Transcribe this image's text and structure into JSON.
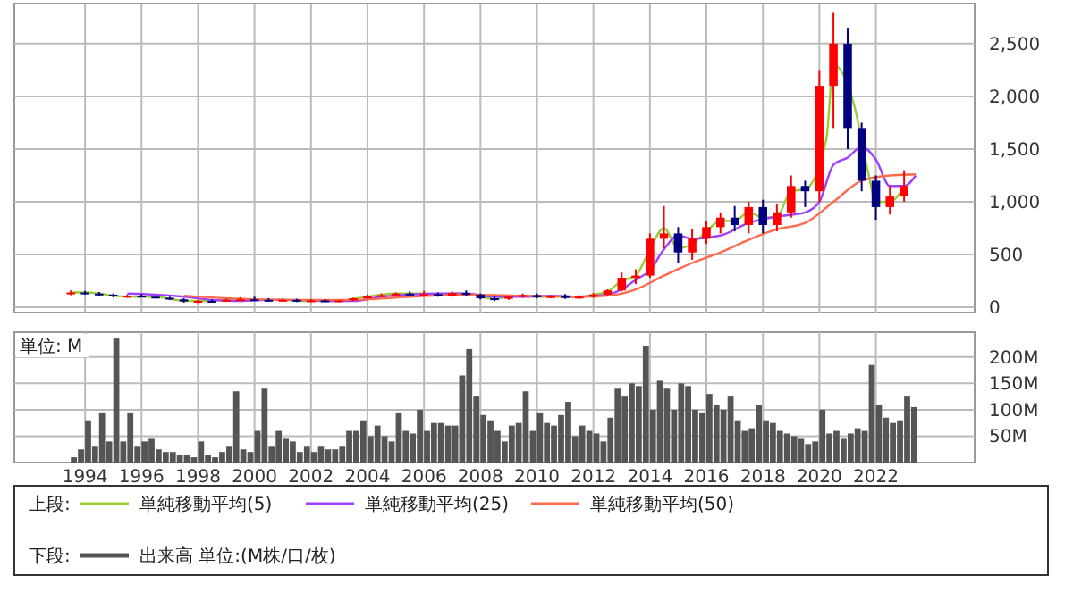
{
  "chart_data": [
    {
      "type": "candlestick",
      "legend_title": "上段:",
      "legend": "bottom",
      "grid": true,
      "tick_labels": "y",
      "xlim": [
        "1991-07",
        "2025-07"
      ],
      "xticks": [
        "1994",
        "1996",
        "1998",
        "2000",
        "2002",
        "2004",
        "2006",
        "2008",
        "2010",
        "2012",
        "2014",
        "2016",
        "2018",
        "2020",
        "2022"
      ],
      "ylim": [
        -50,
        2880
      ],
      "yticks": [
        0,
        500,
        {
          "value": 1000,
          "label": "1,000"
        },
        {
          "value": 1500,
          "label": "1,500"
        },
        {
          "value": 2000,
          "label": "2,000"
        },
        {
          "value": 2500,
          "label": "2,500"
        }
      ],
      "x": [
        "1993-07",
        "1994-01",
        "1994-07",
        "1995-01",
        "1995-07",
        "1996-01",
        "1996-07",
        "1997-01",
        "1997-07",
        "1998-01",
        "1998-07",
        "1999-01",
        "1999-07",
        "2000-01",
        "2000-07",
        "2001-01",
        "2001-07",
        "2002-01",
        "2002-07",
        "2003-01",
        "2003-07",
        "2004-01",
        "2004-07",
        "2005-01",
        "2005-07",
        "2006-01",
        "2006-07",
        "2007-01",
        "2007-07",
        "2008-01",
        "2008-07",
        "2009-01",
        "2009-07",
        "2010-01",
        "2010-07",
        "2011-01",
        "2011-07",
        "2012-01",
        "2012-07",
        "2013-01",
        "2013-07",
        "2014-01",
        "2014-07",
        "2015-01",
        "2015-07",
        "2016-01",
        "2016-07",
        "2017-01",
        "2017-07",
        "2018-01",
        "2018-07",
        "2019-01",
        "2019-07",
        "2020-01",
        "2020-07",
        "2021-01",
        "2021-07",
        "2022-01",
        "2022-07",
        "2023-01"
      ],
      "ohlc": [
        [
          130,
          160,
          115,
          140
        ],
        [
          140,
          155,
          120,
          130
        ],
        [
          130,
          145,
          110,
          120
        ],
        [
          120,
          130,
          95,
          105
        ],
        [
          105,
          120,
          90,
          110
        ],
        [
          110,
          125,
          95,
          100
        ],
        [
          100,
          110,
          85,
          90
        ],
        [
          90,
          100,
          70,
          75
        ],
        [
          75,
          85,
          45,
          55
        ],
        [
          55,
          70,
          40,
          60
        ],
        [
          60,
          75,
          45,
          55
        ],
        [
          55,
          80,
          50,
          70
        ],
        [
          70,
          95,
          60,
          75
        ],
        [
          75,
          100,
          60,
          70
        ],
        [
          70,
          85,
          55,
          65
        ],
        [
          65,
          80,
          55,
          70
        ],
        [
          70,
          80,
          50,
          60
        ],
        [
          60,
          75,
          50,
          65
        ],
        [
          65,
          75,
          50,
          60
        ],
        [
          60,
          70,
          50,
          65
        ],
        [
          65,
          90,
          60,
          85
        ],
        [
          85,
          120,
          80,
          110
        ],
        [
          110,
          130,
          95,
          115
        ],
        [
          115,
          140,
          105,
          130
        ],
        [
          130,
          150,
          110,
          120
        ],
        [
          120,
          155,
          105,
          125
        ],
        [
          125,
          140,
          100,
          110
        ],
        [
          110,
          150,
          100,
          135
        ],
        [
          135,
          160,
          110,
          120
        ],
        [
          120,
          130,
          75,
          85
        ],
        [
          85,
          110,
          60,
          80
        ],
        [
          80,
          110,
          70,
          100
        ],
        [
          100,
          130,
          90,
          115
        ],
        [
          115,
          130,
          85,
          95
        ],
        [
          95,
          115,
          85,
          105
        ],
        [
          105,
          125,
          80,
          95
        ],
        [
          95,
          115,
          80,
          100
        ],
        [
          100,
          135,
          90,
          120
        ],
        [
          120,
          170,
          110,
          160
        ],
        [
          160,
          330,
          150,
          280
        ],
        [
          280,
          360,
          220,
          300
        ],
        [
          300,
          700,
          280,
          650
        ],
        [
          650,
          960,
          560,
          700
        ],
        [
          700,
          760,
          420,
          520
        ],
        [
          520,
          740,
          450,
          650
        ],
        [
          650,
          820,
          600,
          760
        ],
        [
          760,
          900,
          700,
          850
        ],
        [
          850,
          960,
          720,
          780
        ],
        [
          780,
          1000,
          700,
          950
        ],
        [
          950,
          1020,
          700,
          780
        ],
        [
          780,
          980,
          720,
          900
        ],
        [
          900,
          1250,
          850,
          1150
        ],
        [
          1150,
          1200,
          950,
          1100
        ],
        [
          1100,
          2250,
          1000,
          2100
        ],
        [
          2100,
          2800,
          1700,
          2500
        ],
        [
          2500,
          2650,
          1500,
          1700
        ],
        [
          1700,
          1750,
          1100,
          1200
        ],
        [
          1200,
          1250,
          830,
          950
        ],
        [
          950,
          1150,
          880,
          1050
        ],
        [
          1050,
          1300,
          1000,
          1150
        ]
      ],
      "series": [
        {
          "name": "単純移動平均(5)",
          "type": "line",
          "color": "#9acd32",
          "x": [
            "1993-07",
            "1994-01",
            "1994-07",
            "1995-01",
            "1995-07",
            "1996-01",
            "1996-07",
            "1997-01",
            "1997-07",
            "1998-01",
            "1998-07",
            "1999-01",
            "1999-07",
            "2000-01",
            "2000-07",
            "2001-01",
            "2001-07",
            "2002-01",
            "2002-07",
            "2003-01",
            "2003-07",
            "2004-01",
            "2004-07",
            "2005-01",
            "2005-07",
            "2006-01",
            "2006-07",
            "2007-01",
            "2007-07",
            "2008-01",
            "2008-07",
            "2009-01",
            "2009-07",
            "2010-01",
            "2010-07",
            "2011-01",
            "2011-07",
            "2012-01",
            "2012-07",
            "2013-01",
            "2013-07",
            "2014-01",
            "2014-07",
            "2015-01",
            "2015-07",
            "2016-01",
            "2016-07",
            "2017-01",
            "2017-07",
            "2018-01",
            "2018-07",
            "2019-01",
            "2019-07",
            "2020-04",
            "2020-07",
            "2021-04",
            "2021-10",
            "2022-01",
            "2022-07",
            "2023-01"
          ],
          "values": [
            140,
            140,
            130,
            110,
            100,
            100,
            100,
            80,
            60,
            60,
            60,
            70,
            80,
            70,
            70,
            70,
            60,
            60,
            60,
            60,
            80,
            100,
            120,
            130,
            130,
            130,
            120,
            130,
            130,
            100,
            80,
            100,
            110,
            100,
            100,
            100,
            100,
            120,
            150,
            250,
            300,
            550,
            750,
            560,
            600,
            720,
            820,
            820,
            900,
            850,
            860,
            1100,
            1120,
            1600,
            2300,
            1900,
            1250,
            1000,
            1000,
            1150
          ]
        },
        {
          "name": "単純移動平均(25)",
          "type": "line",
          "color": "#a040ff",
          "x": [
            "1995-07",
            "1996-07",
            "1997-07",
            "1998-07",
            "1999-07",
            "2000-07",
            "2001-07",
            "2002-07",
            "2003-07",
            "2004-07",
            "2005-07",
            "2006-07",
            "2007-07",
            "2008-07",
            "2009-07",
            "2010-07",
            "2011-07",
            "2012-07",
            "2013-01",
            "2013-07",
            "2014-01",
            "2014-07",
            "2015-01",
            "2015-07",
            "2016-07",
            "2017-07",
            "2018-07",
            "2019-07",
            "2020-01",
            "2020-07",
            "2021-01",
            "2021-07",
            "2022-01",
            "2022-07",
            "2023-01",
            "2023-06"
          ],
          "values": [
            130,
            120,
            100,
            70,
            60,
            70,
            70,
            60,
            60,
            100,
            120,
            130,
            130,
            100,
            100,
            110,
            100,
            120,
            170,
            260,
            350,
            550,
            680,
            650,
            680,
            800,
            860,
            900,
            1000,
            1350,
            1420,
            1520,
            1400,
            1150,
            1150,
            1250
          ]
        },
        {
          "name": "単純移動平均(50)",
          "type": "line",
          "color": "#ff6a4d",
          "x": [
            "1997-07",
            "1999-07",
            "2001-07",
            "2003-07",
            "2005-07",
            "2007-07",
            "2009-07",
            "2011-07",
            "2012-07",
            "2013-07",
            "2014-07",
            "2015-07",
            "2016-07",
            "2017-07",
            "2018-07",
            "2019-07",
            "2020-07",
            "2021-07",
            "2022-07",
            "2023-06"
          ],
          "values": [
            110,
            80,
            70,
            70,
            100,
            120,
            110,
            100,
            110,
            170,
            300,
            420,
            520,
            640,
            740,
            800,
            1000,
            1200,
            1250,
            1260
          ]
        }
      ]
    },
    {
      "type": "bar",
      "legend_title": "下段:",
      "legend": "bottom",
      "grid": true,
      "ylabel": "単位: M",
      "xlim": [
        "1991-07",
        "2025-07"
      ],
      "xticks": [
        "1994",
        "1996",
        "1998",
        "2000",
        "2002",
        "2004",
        "2006",
        "2008",
        "2010",
        "2012",
        "2014",
        "2016",
        "2018",
        "2020",
        "2022"
      ],
      "ylim": [
        0,
        247
      ],
      "yticks": [
        {
          "value": 50,
          "label": "50M"
        },
        {
          "value": 100,
          "label": "100M"
        },
        {
          "value": 150,
          "label": "150M"
        },
        {
          "value": 200,
          "label": "200M"
        }
      ],
      "x": [
        "1993-07",
        "1993-10",
        "1994-01",
        "1994-04",
        "1994-07",
        "1994-10",
        "1995-01",
        "1995-04",
        "1995-07",
        "1995-10",
        "1996-01",
        "1996-04",
        "1996-07",
        "1996-10",
        "1997-01",
        "1997-04",
        "1997-07",
        "1997-10",
        "1998-01",
        "1998-04",
        "1998-07",
        "1998-10",
        "1999-01",
        "1999-04",
        "1999-07",
        "1999-10",
        "2000-01",
        "2000-04",
        "2000-07",
        "2000-10",
        "2001-01",
        "2001-04",
        "2001-07",
        "2001-10",
        "2002-01",
        "2002-04",
        "2002-07",
        "2002-10",
        "2003-01",
        "2003-04",
        "2003-07",
        "2003-10",
        "2004-01",
        "2004-04",
        "2004-07",
        "2004-10",
        "2005-01",
        "2005-04",
        "2005-07",
        "2005-10",
        "2006-01",
        "2006-04",
        "2006-07",
        "2006-10",
        "2007-01",
        "2007-04",
        "2007-07",
        "2007-10",
        "2008-01",
        "2008-04",
        "2008-07",
        "2008-10",
        "2009-01",
        "2009-04",
        "2009-07",
        "2009-10",
        "2010-01",
        "2010-04",
        "2010-07",
        "2010-10",
        "2011-01",
        "2011-04",
        "2011-07",
        "2011-10",
        "2012-01",
        "2012-04",
        "2012-07",
        "2012-10",
        "2013-01",
        "2013-04",
        "2013-07",
        "2013-10",
        "2014-01",
        "2014-04",
        "2014-07",
        "2014-10",
        "2015-01",
        "2015-04",
        "2015-07",
        "2015-10",
        "2016-01",
        "2016-04",
        "2016-07",
        "2016-10",
        "2017-01",
        "2017-04",
        "2017-07",
        "2017-10",
        "2018-01",
        "2018-04",
        "2018-07",
        "2018-10",
        "2019-01",
        "2019-04",
        "2019-07",
        "2019-10",
        "2020-01",
        "2020-04",
        "2020-07",
        "2020-10",
        "2021-01",
        "2021-04",
        "2021-07",
        "2021-10",
        "2022-01",
        "2022-04",
        "2022-07",
        "2022-10",
        "2023-01",
        "2023-04"
      ],
      "series": [
        {
          "name": "出来高 単位:(M株/口/枚)",
          "color": "#555555",
          "values": [
            10,
            25,
            80,
            30,
            95,
            40,
            235,
            40,
            95,
            30,
            40,
            45,
            25,
            20,
            20,
            15,
            15,
            10,
            40,
            15,
            10,
            20,
            30,
            135,
            25,
            20,
            60,
            140,
            30,
            60,
            45,
            40,
            20,
            30,
            20,
            30,
            25,
            25,
            30,
            60,
            60,
            80,
            50,
            70,
            50,
            40,
            95,
            60,
            55,
            100,
            60,
            75,
            75,
            70,
            70,
            165,
            215,
            125,
            90,
            80,
            60,
            40,
            70,
            75,
            135,
            60,
            95,
            75,
            70,
            90,
            115,
            50,
            70,
            60,
            55,
            40,
            85,
            140,
            125,
            150,
            145,
            220,
            100,
            155,
            140,
            100,
            150,
            145,
            100,
            95,
            130,
            110,
            100,
            125,
            80,
            60,
            65,
            110,
            80,
            75,
            60,
            55,
            50,
            45,
            35,
            40,
            100,
            55,
            60,
            45,
            55,
            65,
            60,
            185,
            110,
            85,
            75,
            80,
            125,
            105
          ]
        }
      ]
    }
  ]
}
